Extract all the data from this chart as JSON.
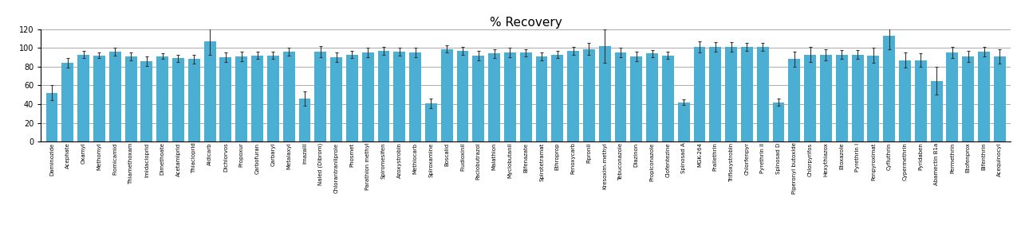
{
  "title": "% Recovery",
  "title_fontsize": 11,
  "bar_color": "#4bafd4",
  "error_color": "#333333",
  "ylim": [
    0,
    120
  ],
  "yticks": [
    0,
    20,
    40,
    60,
    80,
    100,
    120
  ],
  "categories": [
    "Daminozide",
    "Acephate",
    "Oxamyl",
    "Methomyl",
    "Flomicamid",
    "Thiamethoxam",
    "Imidacloprid",
    "Dimethoate",
    "Acetamiprid",
    "Thiacloprid",
    "Aldicarb",
    "Dichlorvos",
    "Propoxur",
    "Carbofuran",
    "Carbaryl",
    "Metalaxyl",
    "Imazalil",
    "Naled (Dibrom)",
    "Chlorantranilprole",
    "Phosmet",
    "Parathion methyl",
    "Spiromesifen",
    "Azoxystrobin",
    "Methiocarb",
    "Spiroxamine",
    "Boscalid",
    "Fludioxinil",
    "Paclobutrazol",
    "Malathion",
    "Myclobutanil",
    "Bifenazate",
    "Spirotetramat",
    "Ethroprop",
    "Fenoxycarb",
    "Fipronil",
    "Kresoxim-methyl",
    "Tebuconazole",
    "Diazinon",
    "Propiconazole",
    "Clofentezine",
    "Spinosad A",
    "MGK-264",
    "Prallethrin",
    "Trifloxystrobin",
    "Chlorfenpyr",
    "Pyrethrin II",
    "Spinosad D",
    "Piperonyl butoxide",
    "Chlorpyrifos",
    "Hexythiazox",
    "Etoxazole",
    "Pyrethrin I",
    "Fenpyroximat",
    "Cyfluthrin",
    "Cypermethrin",
    "Pyridaben",
    "Abamectin B1a",
    "Permethrin",
    "Etofenprox",
    "Bifenthrin",
    "Acequinocyl"
  ],
  "values": [
    52,
    84,
    93,
    92,
    96,
    91,
    86,
    91,
    89,
    88,
    107,
    90,
    91,
    92,
    92,
    96,
    46,
    96,
    90,
    93,
    95,
    97,
    96,
    95,
    41,
    99,
    97,
    92,
    94,
    95,
    95,
    91,
    93,
    97,
    99,
    102,
    95,
    91,
    94,
    92,
    42,
    101,
    101,
    101,
    101,
    101,
    42,
    88,
    93,
    93,
    93,
    93,
    92,
    113,
    87,
    87,
    65,
    95,
    91,
    96,
    91
  ],
  "errors": [
    8,
    5,
    4,
    3,
    4,
    4,
    5,
    3,
    4,
    5,
    14,
    5,
    5,
    4,
    4,
    4,
    8,
    6,
    5,
    4,
    5,
    4,
    4,
    5,
    5,
    4,
    4,
    5,
    5,
    5,
    4,
    4,
    4,
    4,
    6,
    18,
    5,
    5,
    4,
    4,
    3,
    6,
    5,
    5,
    4,
    4,
    4,
    8,
    8,
    6,
    5,
    5,
    8,
    14,
    8,
    7,
    15,
    6,
    6,
    5,
    8
  ]
}
